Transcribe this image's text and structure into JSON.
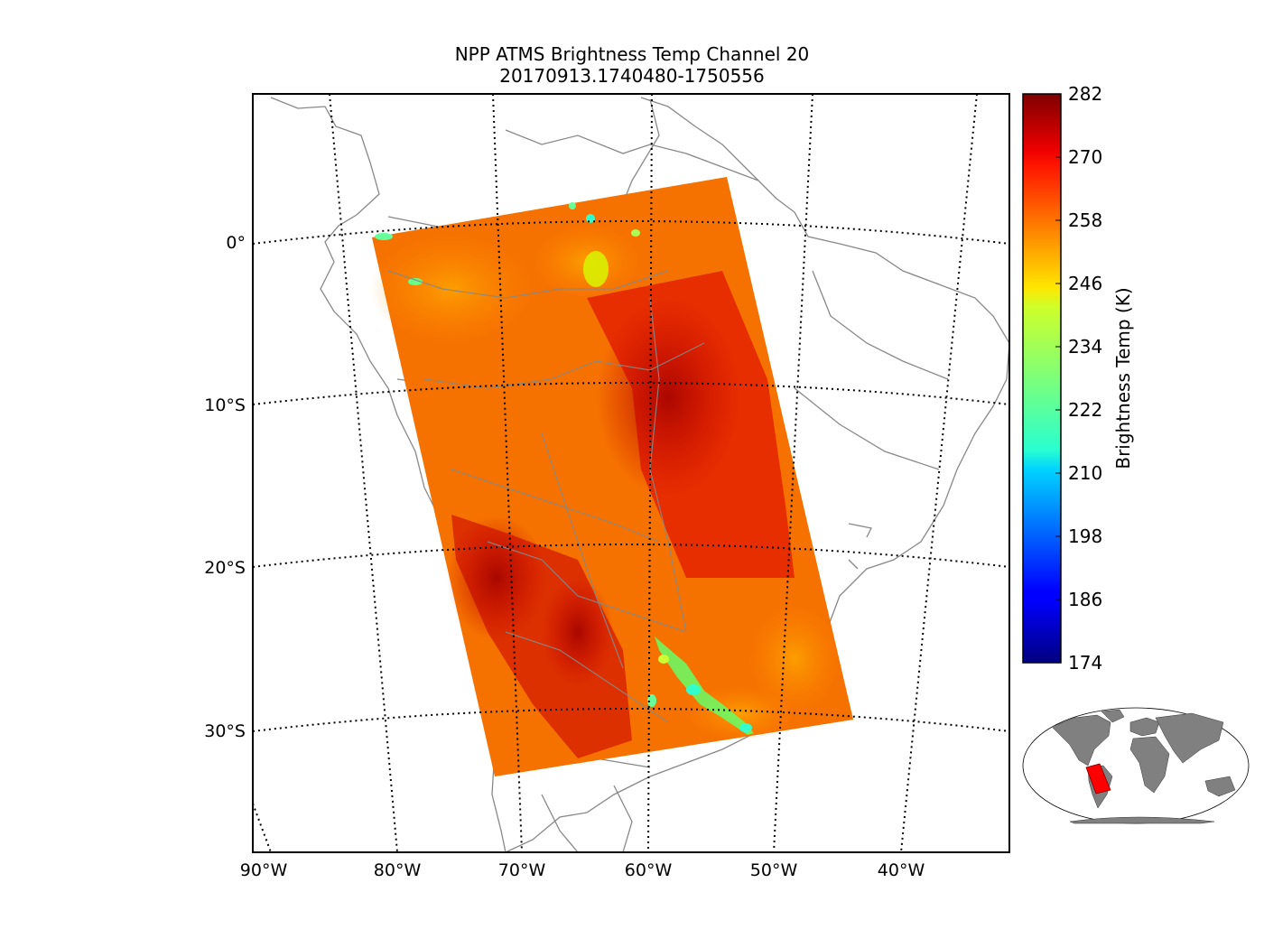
{
  "title": {
    "line1": "NPP ATMS Brightness Temp Channel 20",
    "line2": "20170913.1740480-1750556"
  },
  "map": {
    "lat_labels": [
      "0°",
      "10°S",
      "20°S",
      "30°S"
    ],
    "lon_labels": [
      "90°W",
      "80°W",
      "70°W",
      "60°W",
      "50°W",
      "40°W"
    ],
    "coast_color": "#888888",
    "grid_style": "dotted"
  },
  "colorbar": {
    "label": "Brightness Temp (K)",
    "ticks": [
      "282",
      "270",
      "258",
      "246",
      "234",
      "222",
      "210",
      "198",
      "186",
      "174"
    ],
    "min": 174,
    "max": 282,
    "colormap": "jet"
  },
  "inset": {
    "land_color": "#808080",
    "swath_color": "#ff0000"
  }
}
